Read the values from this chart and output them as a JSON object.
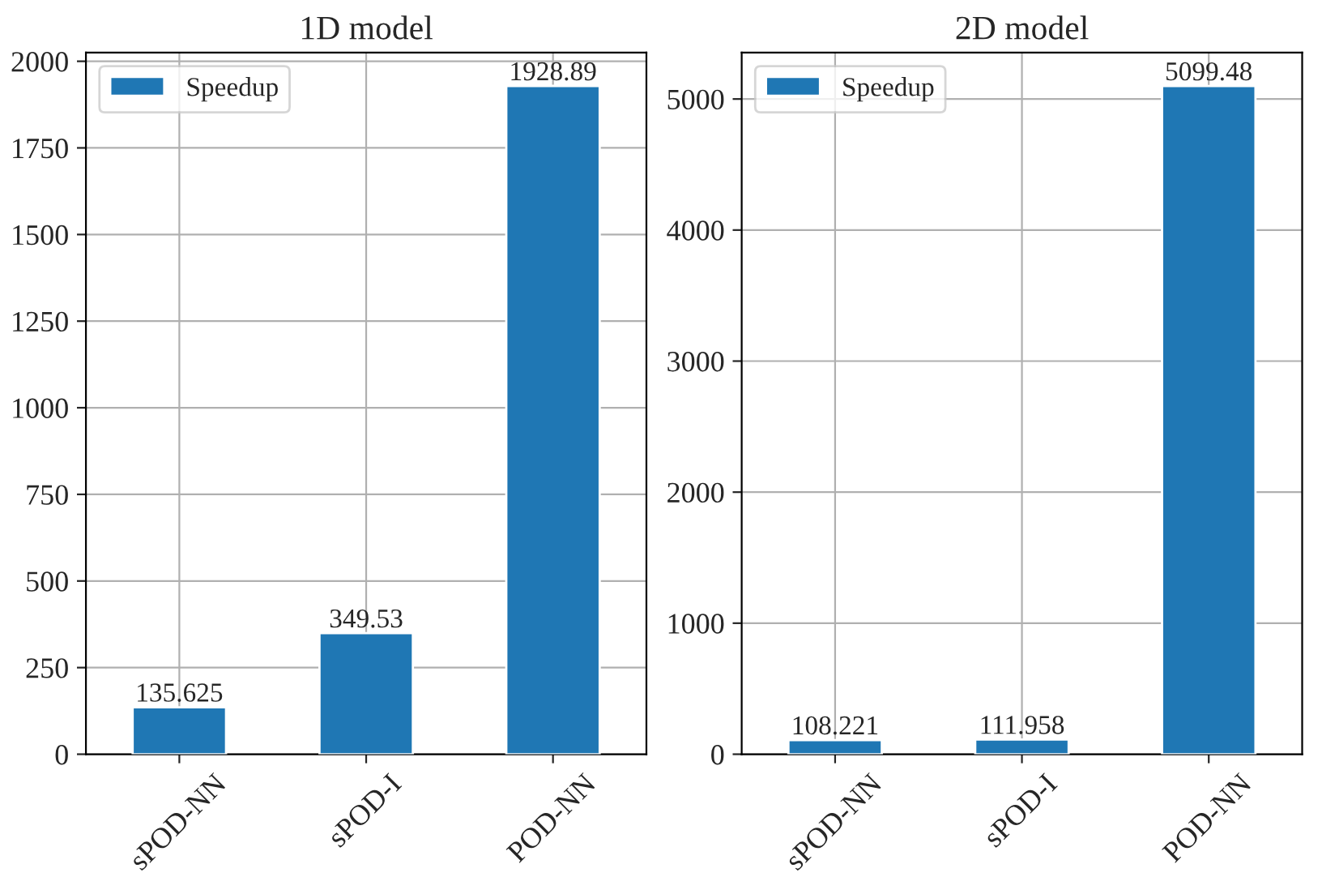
{
  "chart_data": [
    {
      "type": "bar",
      "title": "1D model",
      "categories": [
        "sPOD-NN",
        "sPOD-I",
        "POD-NN"
      ],
      "series": [
        {
          "name": "Speedup",
          "color": "#1f77b4",
          "values": [
            135.625,
            349.53,
            1928.89
          ]
        }
      ],
      "ylim": [
        0,
        2025
      ],
      "yticks": [
        0,
        250,
        500,
        750,
        1000,
        1250,
        1500,
        1750,
        2000
      ],
      "grid": true,
      "legend": "top left",
      "data_labels": true
    },
    {
      "type": "bar",
      "title": "2D model",
      "categories": [
        "sPOD-NN",
        "sPOD-I",
        "POD-NN"
      ],
      "series": [
        {
          "name": "Speedup",
          "color": "#1f77b4",
          "values": [
            108.221,
            111.958,
            5099.48
          ]
        }
      ],
      "ylim": [
        0,
        5354
      ],
      "yticks": [
        0,
        1000,
        2000,
        3000,
        4000,
        5000
      ],
      "grid": true,
      "legend": "top left",
      "data_labels": true
    }
  ]
}
